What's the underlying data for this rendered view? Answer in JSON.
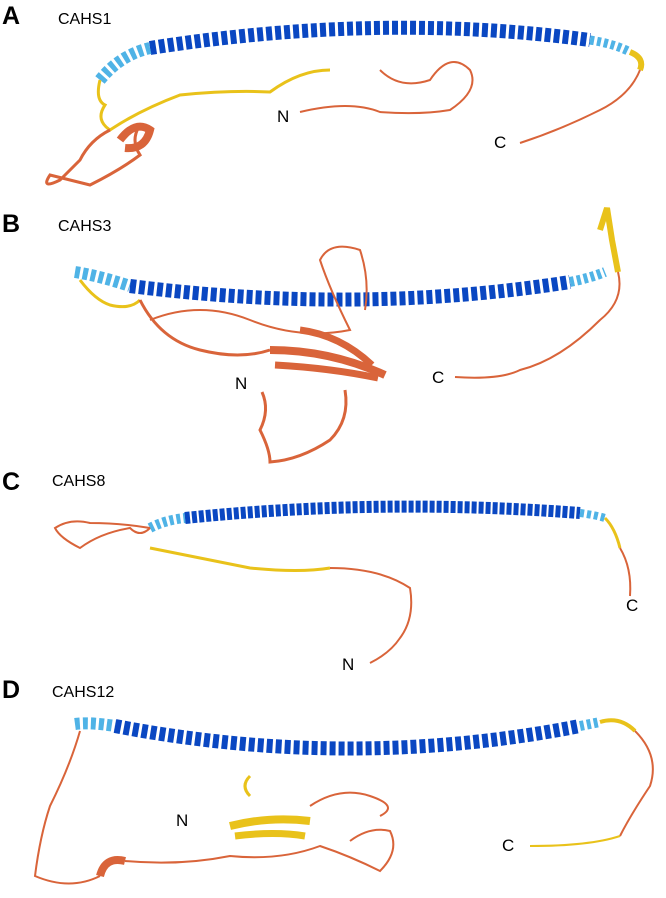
{
  "colors": {
    "helix_high_confidence": "#0a47c2",
    "helix_medium_confidence": "#4fb3e6",
    "low_confidence": "#e9c21a",
    "very_low_confidence": "#d9643a"
  },
  "panels": [
    {
      "letter": "A",
      "title": "CAHS1",
      "n_label": "N",
      "c_label": "C"
    },
    {
      "letter": "B",
      "title": "CAHS3",
      "n_label": "N",
      "c_label": "C"
    },
    {
      "letter": "C",
      "title": "CAHS8",
      "n_label": "N",
      "c_label": "C"
    },
    {
      "letter": "D",
      "title": "CAHS12",
      "n_label": "N",
      "c_label": "C"
    }
  ]
}
